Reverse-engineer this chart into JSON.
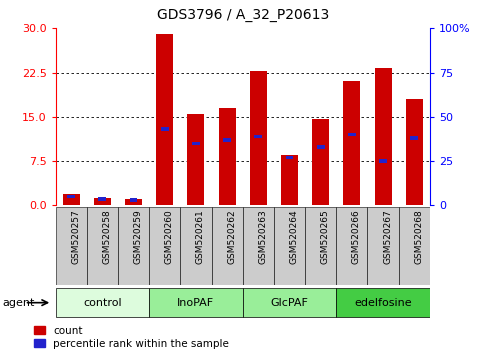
{
  "title": "GDS3796 / A_32_P20613",
  "samples": [
    "GSM520257",
    "GSM520258",
    "GSM520259",
    "GSM520260",
    "GSM520261",
    "GSM520262",
    "GSM520263",
    "GSM520264",
    "GSM520265",
    "GSM520266",
    "GSM520267",
    "GSM520268"
  ],
  "count_values": [
    2.0,
    1.3,
    1.1,
    29.0,
    15.5,
    16.5,
    22.7,
    8.5,
    14.7,
    21.0,
    23.2,
    18.0
  ],
  "percentile_values": [
    5.0,
    3.5,
    3.0,
    43.0,
    35.0,
    37.0,
    39.0,
    27.0,
    33.0,
    40.0,
    25.0,
    38.0
  ],
  "groups": [
    {
      "label": "control",
      "start": 0,
      "end": 3,
      "color": "#ddfcdd"
    },
    {
      "label": "InoPAF",
      "start": 3,
      "end": 6,
      "color": "#99ee99"
    },
    {
      "label": "GlcPAF",
      "start": 6,
      "end": 9,
      "color": "#99ee99"
    },
    {
      "label": "edelfosine",
      "start": 9,
      "end": 12,
      "color": "#44cc44"
    }
  ],
  "ylim_left": [
    0,
    30
  ],
  "ylim_right": [
    0,
    100
  ],
  "yticks_left": [
    0,
    7.5,
    15.0,
    22.5,
    30
  ],
  "yticks_right": [
    0,
    25,
    50,
    75,
    100
  ],
  "bar_color_red": "#cc0000",
  "bar_color_blue": "#2222cc",
  "bar_width": 0.55,
  "agent_label": "agent",
  "legend_count": "count",
  "legend_pct": "percentile rank within the sample",
  "cell_color": "#cccccc",
  "plot_bg": "#ffffff"
}
